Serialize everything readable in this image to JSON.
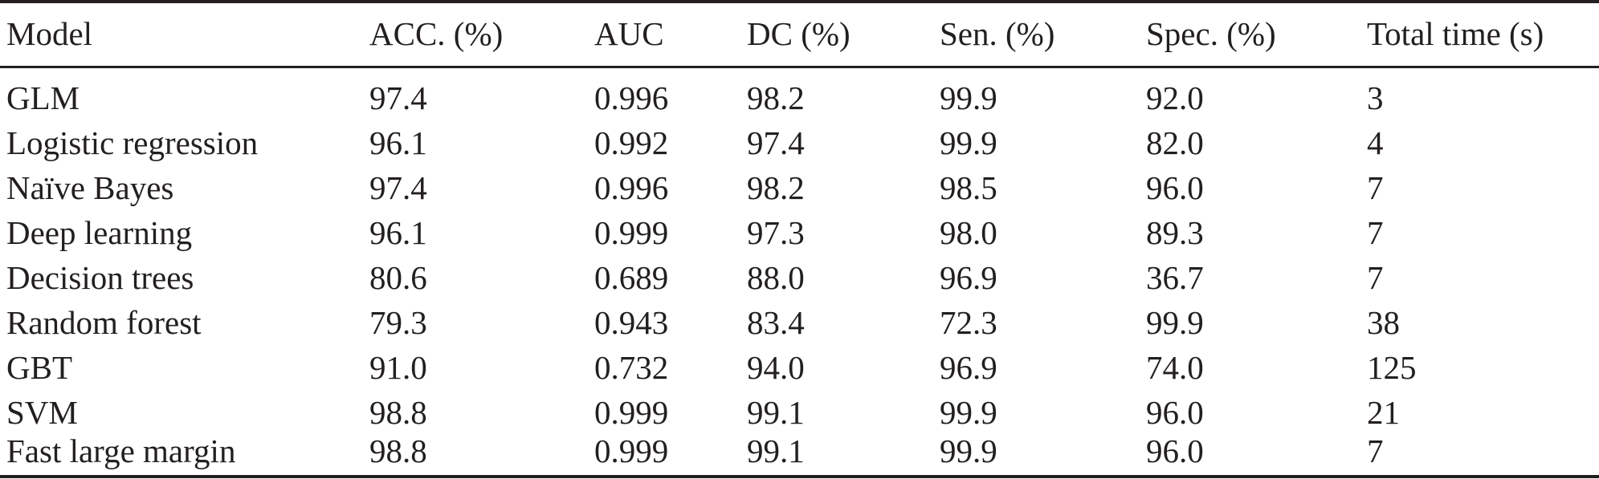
{
  "table": {
    "columns": [
      "Model",
      "ACC. (%)",
      "AUC",
      "DC (%)",
      "Sen. (%)",
      "Spec. (%)",
      "Total time (s)"
    ],
    "rows": [
      [
        "GLM",
        "97.4",
        "0.996",
        "98.2",
        "99.9",
        "92.0",
        "3"
      ],
      [
        "Logistic regression",
        "96.1",
        "0.992",
        "97.4",
        "99.9",
        "82.0",
        "4"
      ],
      [
        "Naïve Bayes",
        "97.4",
        "0.996",
        "98.2",
        "98.5",
        "96.0",
        "7"
      ],
      [
        "Deep learning",
        "96.1",
        "0.999",
        "97.3",
        "98.0",
        "89.3",
        "7"
      ],
      [
        "Decision trees",
        "80.6",
        "0.689",
        "88.0",
        "96.9",
        "36.7",
        "7"
      ],
      [
        "Random forest",
        "79.3",
        "0.943",
        "83.4",
        "72.3",
        "99.9",
        "38"
      ],
      [
        "GBT",
        "91.0",
        "0.732",
        "94.0",
        "96.9",
        "74.0",
        "125"
      ],
      [
        "SVM",
        "98.8",
        "0.999",
        "99.1",
        "99.9",
        "96.0",
        "21"
      ],
      [
        "Fast large margin",
        "98.8",
        "0.999",
        "99.1",
        "99.9",
        "96.0",
        "7"
      ]
    ]
  }
}
